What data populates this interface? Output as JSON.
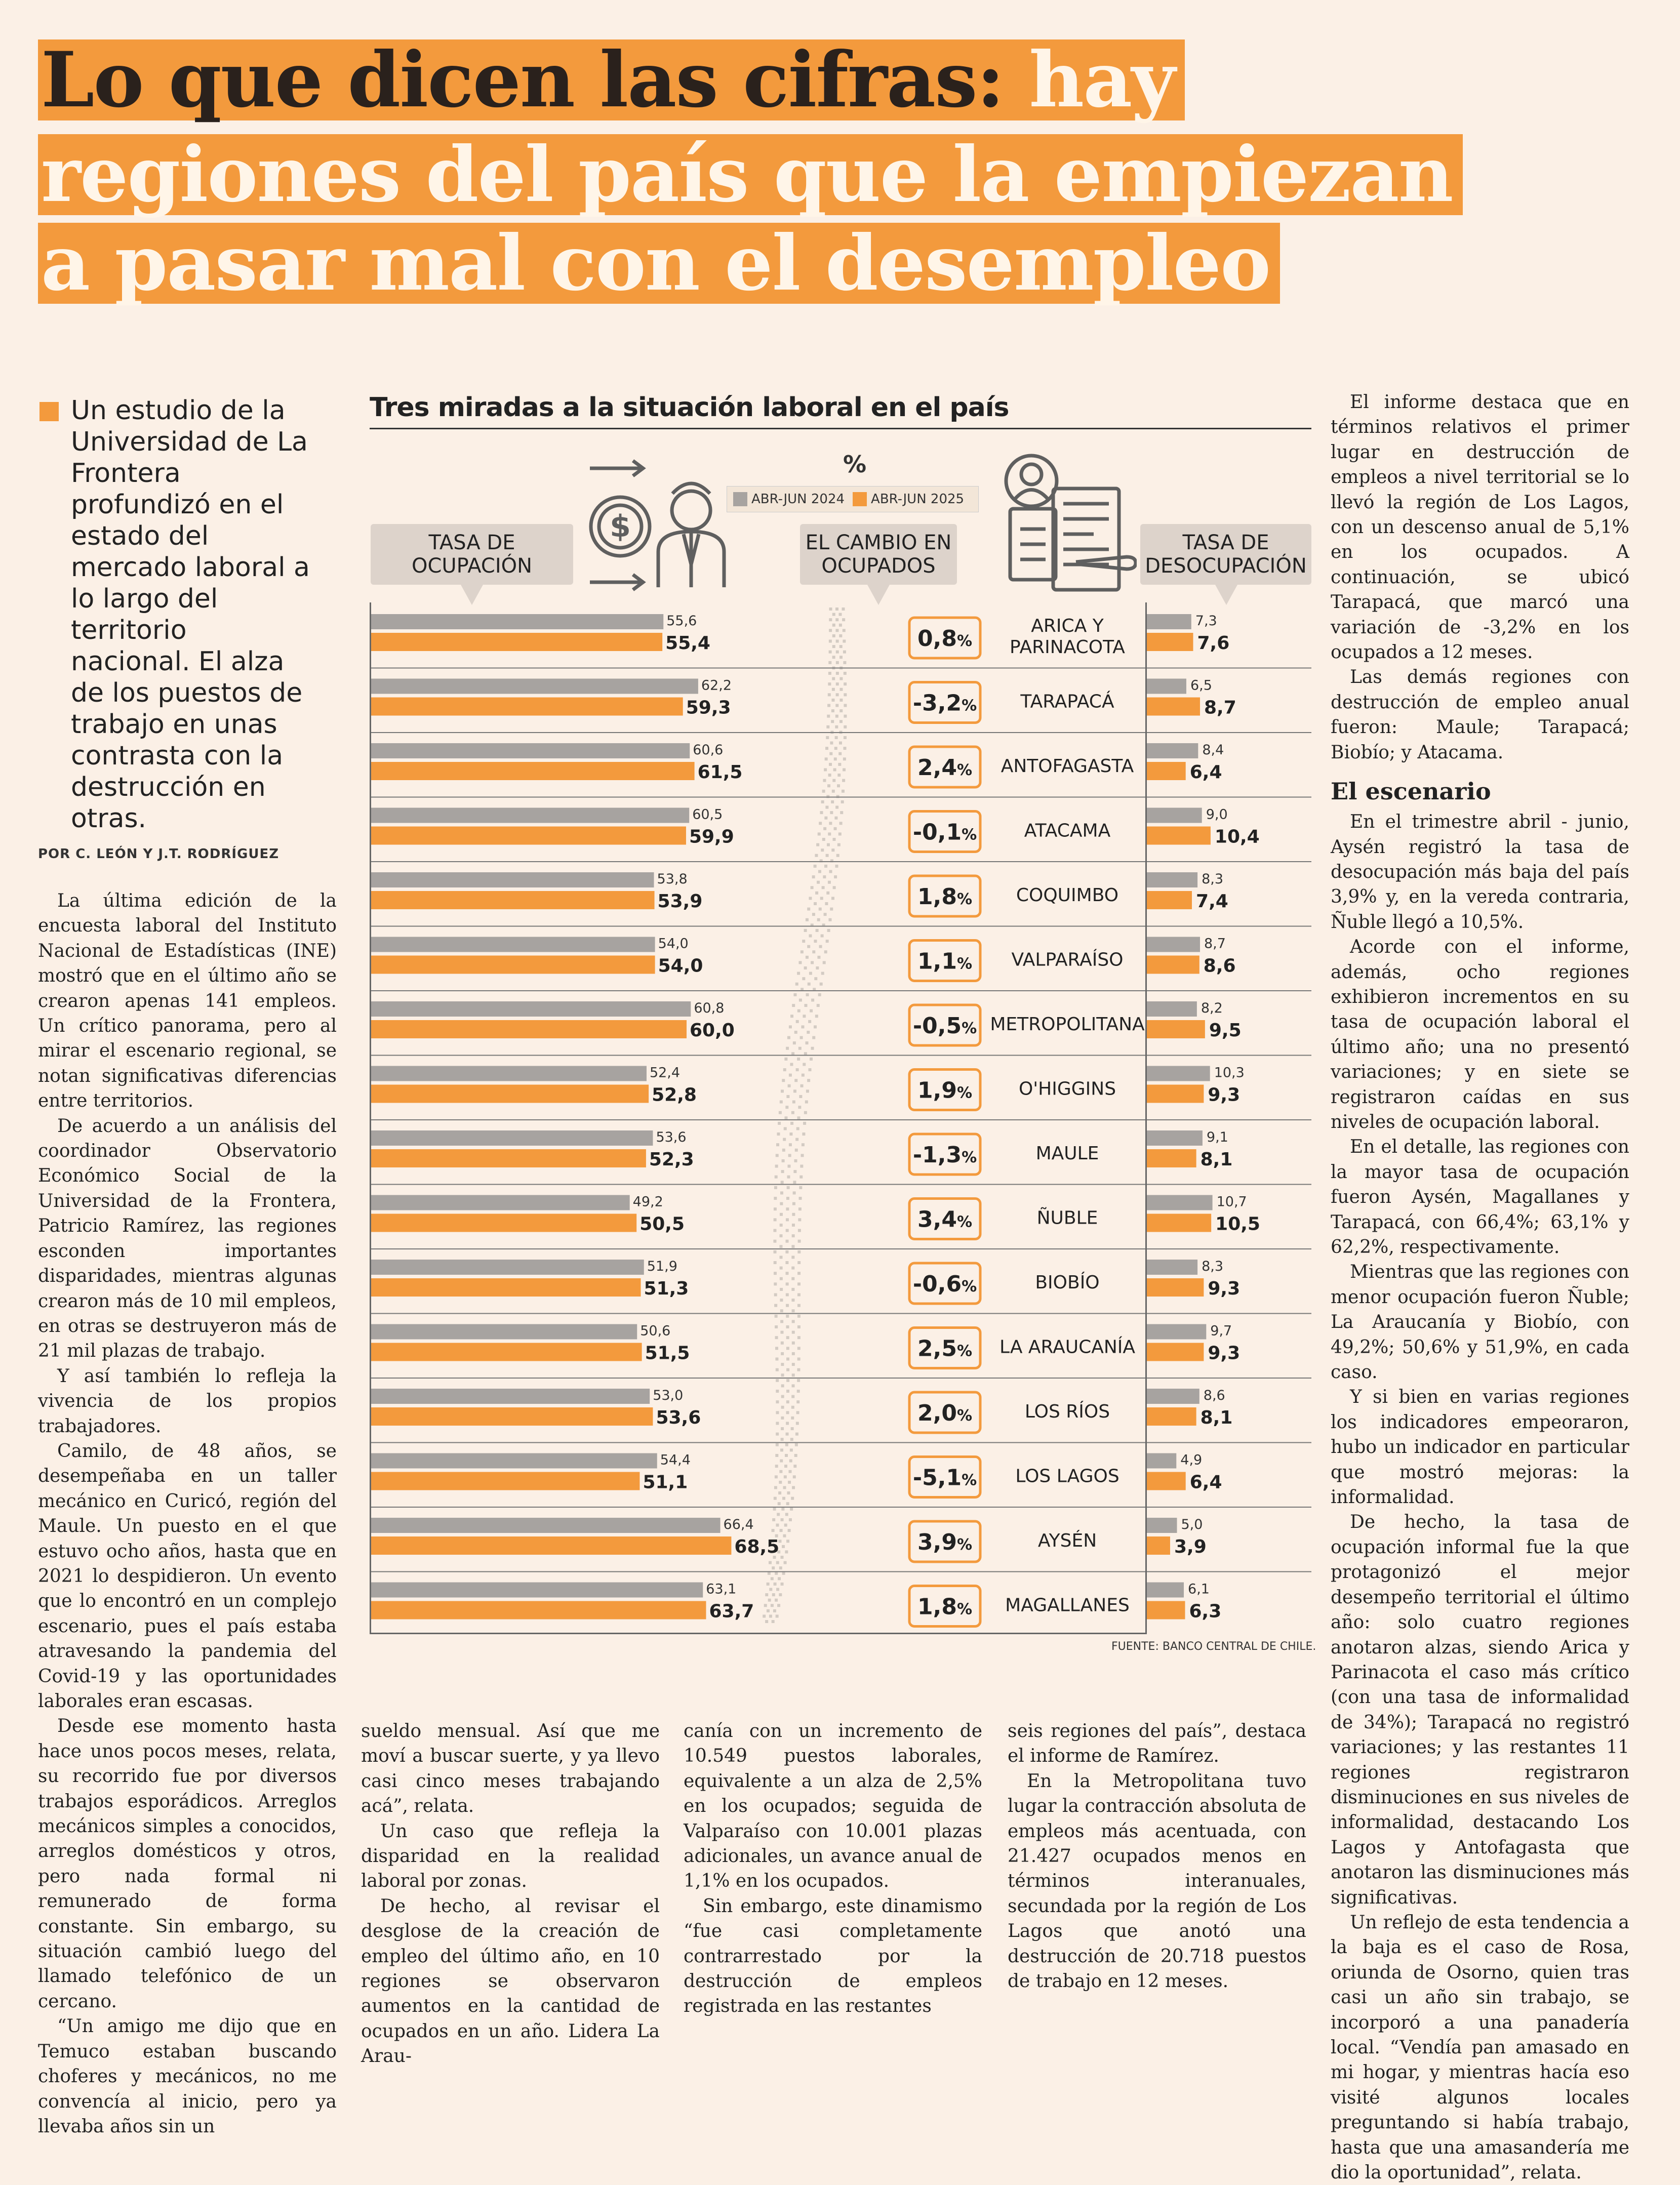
{
  "headline": {
    "line1_dark": "Lo que dicen las cifras:",
    "line1_light": "hay",
    "line2": "regiones del país que la empiezan",
    "line3": "a pasar mal con el desempleo"
  },
  "lead": "Un estudio de la Universidad de La Frontera profundizó en el estado del mercado laboral a lo largo del territorio nacional. El alza de los puestos de trabajo en unas contrasta con la destrucción en otras.",
  "byline": "POR C. LEÓN Y J.T. RODRÍGUEZ",
  "colors": {
    "accent": "#f39a3d",
    "grey": "#a7a3a0",
    "box_border": "#f39a3d"
  },
  "infographic": {
    "title": "Tres miradas a la situación laboral en el país",
    "percent_symbol": "%",
    "tab_ocupacion": "TASA DE OCUPACIÓN",
    "tab_cambio": "EL CAMBIO EN OCUPADOS",
    "tab_desocupacion": "TASA DE DESOCUPACIÓN",
    "legend_2024": "ABR-JUN 2024",
    "legend_2025": "ABR-JUN 2025",
    "source": "FUENTE: BANCO CENTRAL DE CHILE.",
    "icons": [
      "money-transfer-icon",
      "worker-icon",
      "newspaper-job-icon",
      "chile-map-icon"
    ]
  },
  "chart_data": [
    {
      "type": "bar",
      "orientation": "horizontal",
      "title": "TASA DE OCUPACIÓN",
      "categories": [
        "ARICA Y PARINACOTA",
        "TARAPACÁ",
        "ANTOFAGASTA",
        "ATACAMA",
        "COQUIMBO",
        "VALPARAÍSO",
        "METROPOLITANA",
        "O'HIGGINS",
        "MAULE",
        "ÑUBLE",
        "BIOBÍO",
        "LA ARAUCANÍA",
        "LOS RÍOS",
        "LOS LAGOS",
        "AYSÉN",
        "MAGALLANES"
      ],
      "series": [
        {
          "name": "ABR-JUN 2024",
          "values": [
            55.6,
            62.2,
            60.6,
            60.5,
            53.8,
            54.0,
            60.8,
            52.4,
            53.6,
            49.2,
            51.9,
            50.6,
            53.0,
            54.4,
            66.4,
            63.1
          ],
          "labels": [
            "55,6",
            "62,2",
            "60,6",
            "60,5",
            "53,8",
            "54,0",
            "60,8",
            "52,4",
            "53,6",
            "49,2",
            "51,9",
            "50,6",
            "53,0",
            "54,4",
            "66,4",
            "63,1"
          ]
        },
        {
          "name": "ABR-JUN 2025",
          "values": [
            55.4,
            59.3,
            61.5,
            59.9,
            53.9,
            54.0,
            60.0,
            52.8,
            52.3,
            50.5,
            51.3,
            51.5,
            53.6,
            51.1,
            68.5,
            63.7
          ],
          "labels": [
            "55,4",
            "59,3",
            "61,5",
            "59,9",
            "53,9",
            "54,0",
            "60,0",
            "52,8",
            "52,3",
            "50,5",
            "51,3",
            "51,5",
            "53,6",
            "51,1",
            "68,5",
            "63,7"
          ]
        }
      ]
    },
    {
      "type": "table",
      "title": "EL CAMBIO EN OCUPADOS",
      "categories": [
        "ARICA Y PARINACOTA",
        "TARAPACÁ",
        "ANTOFAGASTA",
        "ATACAMA",
        "COQUIMBO",
        "VALPARAÍSO",
        "METROPOLITANA",
        "O'HIGGINS",
        "MAULE",
        "ÑUBLE",
        "BIOBÍO",
        "LA ARAUCANÍA",
        "LOS RÍOS",
        "LOS LAGOS",
        "AYSÉN",
        "MAGALLANES"
      ],
      "values": [
        0.8,
        -3.2,
        2.4,
        -0.1,
        1.8,
        1.1,
        -0.5,
        1.9,
        -1.3,
        3.4,
        -0.6,
        2.5,
        2.0,
        -5.1,
        3.9,
        1.8
      ],
      "labels": [
        "0,8",
        "-3,2",
        "2,4",
        "-0,1",
        "1,8",
        "1,1",
        "-0,5",
        "1,9",
        "-1,3",
        "3,4",
        "-0,6",
        "2,5",
        "2,0",
        "-5,1",
        "3,9",
        "1,8"
      ],
      "unit": "%"
    },
    {
      "type": "bar",
      "orientation": "horizontal",
      "title": "TASA DE DESOCUPACIÓN",
      "categories": [
        "ARICA Y PARINACOTA",
        "TARAPACÁ",
        "ANTOFAGASTA",
        "ATACAMA",
        "COQUIMBO",
        "VALPARAÍSO",
        "METROPOLITANA",
        "O'HIGGINS",
        "MAULE",
        "ÑUBLE",
        "BIOBÍO",
        "LA ARAUCANÍA",
        "LOS RÍOS",
        "LOS LAGOS",
        "AYSÉN",
        "MAGALLANES"
      ],
      "series": [
        {
          "name": "ABR-JUN 2024",
          "values": [
            7.3,
            6.5,
            8.4,
            9.0,
            8.3,
            8.7,
            8.2,
            10.3,
            9.1,
            10.7,
            8.3,
            9.7,
            8.6,
            4.9,
            5.0,
            6.1
          ],
          "labels": [
            "7,3",
            "6,5",
            "8,4",
            "9,0",
            "8,3",
            "8,7",
            "8,2",
            "10,3",
            "9,1",
            "10,7",
            "8,3",
            "9,7",
            "8,6",
            "4,9",
            "5,0",
            "6,1"
          ]
        },
        {
          "name": "ABR-JUN 2025",
          "values": [
            7.6,
            8.7,
            6.4,
            10.4,
            7.4,
            8.6,
            9.5,
            9.3,
            8.1,
            10.5,
            9.3,
            9.3,
            8.1,
            6.4,
            3.9,
            6.3
          ],
          "labels": [
            "7,6",
            "8,7",
            "6,4",
            "10,4",
            "7,4",
            "8,6",
            "9,5",
            "9,3",
            "8,1",
            "10,5",
            "9,3",
            "9,3",
            "8,1",
            "6,4",
            "3,9",
            "6,3"
          ]
        }
      ]
    }
  ],
  "region_labels": [
    "ARICA Y PARINACOTA",
    "TARAPACÁ",
    "ANTOFAGASTA",
    "ATACAMA",
    "COQUIMBO",
    "VALPARAÍSO",
    "METROPOLITANA",
    "O'HIGGINS",
    "MAULE",
    "ÑUBLE",
    "BIOBÍO",
    "LA ARAUCANÍA",
    "LOS RÍOS",
    "LOS LAGOS",
    "AYSÉN",
    "MAGALLANES"
  ],
  "columns": {
    "col1": [
      "La última edición de la encuesta laboral del Instituto Nacional de Estadísticas (INE) mostró que en el último año se crearon apenas 141 empleos. Un crítico panorama, pero al mirar el escenario regional, se notan significativas diferencias entre territorios.",
      "De acuerdo a un análisis del coordinador Observatorio Económico Social de la Universidad de la Frontera, Patricio Ramírez, las regiones esconden importantes disparidades, mientras algunas crearon más de 10 mil empleos, en otras se destruyeron más de 21 mil plazas de trabajo.",
      "Y así también lo refleja la vivencia de los propios trabajadores.",
      "Camilo, de 48 años, se desempeñaba en un taller mecánico en Curicó, región del Maule. Un puesto en el que estuvo ocho años, hasta que en 2021 lo despidieron. Un evento que lo encontró en un complejo escenario, pues el país estaba atravesando la pandemia del Covid-19 y las oportunidades laborales eran escasas.",
      "Desde ese momento hasta hace unos pocos meses, relata, su recorrido fue por diversos trabajos esporádicos. Arreglos mecánicos simples a conocidos, arreglos domésticos y otros, pero nada formal ni remunerado de forma constante. Sin embargo, su situación cambió luego del llamado telefónico de un cercano.",
      "“Un amigo me dijo que en Temuco estaban buscando choferes y mecánicos, no me convencía al inicio, pero ya llevaba años sin un"
    ],
    "col2": [
      "sueldo mensual. Así que me moví a buscar suerte, y ya llevo casi cinco meses trabajando acá”, relata.",
      "Un caso que refleja la disparidad en la realidad laboral por zonas.",
      "De hecho, al revisar el desglose de la creación de empleo del último año, en 10 regiones se observaron aumentos en la cantidad de ocupados en un año. Lidera La Arau-"
    ],
    "col3": [
      "canía con un incremento de 10.549 puestos laborales, equivalente a un alza de 2,5% en los ocupados; seguida de Valparaíso con 10.001 plazas adicionales, un avance anual de 1,1% en los ocupados.",
      "Sin embargo, este dinamismo “fue casi completamente contrarrestado por la destrucción de empleos registrada en las restantes"
    ],
    "col4": [
      "seis regiones del país”, destaca el informe de Ramírez.",
      "En la Metropolitana tuvo lugar la contracción absoluta de empleos más acentuada, con 21.427 ocupados menos en términos interanuales, secundada por la región de Los Lagos que anotó una destrucción de 20.718 puestos de trabajo en 12 meses."
    ],
    "col5_a": [
      "El informe destaca que en términos relativos el primer lugar en destrucción de empleos a nivel territorial se lo llevó la región de Los Lagos, con un descenso anual de 5,1% en los ocupados. A continuación, se ubicó Tarapacá, que marcó una variación de -3,2% en los ocupados a 12 meses.",
      "Las demás regiones con destrucción de empleo anual fueron: Maule; Tarapacá; Biobío; y Atacama."
    ],
    "col5_heading": "El escenario",
    "col5_b": [
      "En el trimestre abril - junio, Aysén registró la tasa de desocupación más baja del país 3,9% y, en la vereda contraria, Ñuble llegó a 10,5%.",
      "Acorde con el informe, además, ocho regiones exhibieron incrementos en su tasa de ocupación laboral el último año; una no presentó variaciones; y en siete se registraron caídas en sus niveles de ocupación laboral.",
      "En el detalle, las regiones con la mayor tasa de ocupación fueron Aysén, Magallanes y Tarapacá, con 66,4%; 63,1% y 62,2%, respectivamente.",
      "Mientras que las regiones con menor ocupación fueron Ñuble; La Araucanía y Biobío, con 49,2%; 50,6% y 51,9%, en cada caso.",
      "Y si bien en varias regiones los indicadores empeoraron, hubo un indicador en particular que mostró mejoras: la informalidad.",
      "De hecho, la tasa de ocupación informal fue la que protagonizó el mejor desempeño territorial el último año: solo cuatro regiones anotaron alzas, siendo Arica y Parinacota el caso más crítico (con una tasa de informalidad de 34%); Tarapacá no registró variaciones; y las restantes 11 regiones registraron disminuciones en sus niveles de informalidad, destacando Los Lagos y Antofagasta que anotaron las disminuciones más significativas.",
      "Un reflejo de esta tendencia a la baja es el caso de Rosa, oriunda de Osorno, quien tras casi un año sin trabajo, se incorporó a una panadería local. “Vendía pan amasado en mi hogar, y mientras hacía eso visité algunos locales preguntando si había trabajo, hasta que una amasandería me dio la oportunidad”, relata."
    ]
  }
}
